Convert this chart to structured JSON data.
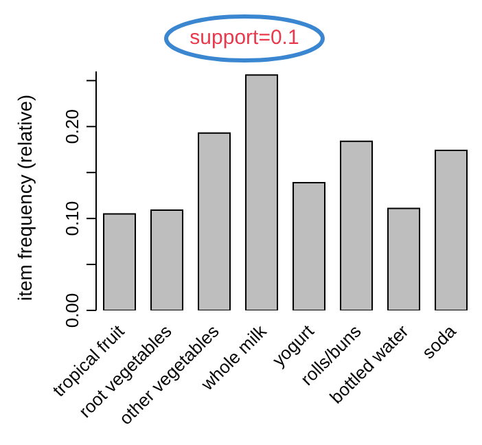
{
  "chart_data": {
    "type": "bar",
    "title": "support=0.1",
    "ylabel": "item frequency (relative)",
    "categories": [
      "tropical fruit",
      "root vegetables",
      "other vegetables",
      "whole milk",
      "yogurt",
      "rolls/buns",
      "bottled water",
      "soda"
    ],
    "values": [
      0.105,
      0.109,
      0.193,
      0.256,
      0.139,
      0.184,
      0.111,
      0.174
    ],
    "color": "#bebebe",
    "ylim": [
      0,
      0.26
    ],
    "yticks": [
      {
        "value": 0,
        "label": "0.00"
      },
      {
        "value": 0.05,
        "label": null
      },
      {
        "value": 0.1,
        "label": "0.10"
      },
      {
        "value": 0.15,
        "label": null
      },
      {
        "value": 0.2,
        "label": "0.20"
      },
      {
        "value": 0.25,
        "label": null
      }
    ],
    "grid": false,
    "legend": false
  }
}
